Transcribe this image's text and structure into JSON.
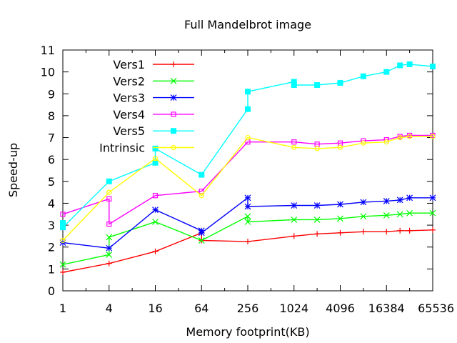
{
  "chart_data": {
    "type": "line",
    "title": "Full Mandelbrot image",
    "xlabel": "Memory footprint(KB)",
    "ylabel": "Speed-up",
    "x_scale": "log2",
    "xlim": [
      1,
      65536
    ],
    "ylim": [
      0,
      11
    ],
    "x_ticks": [
      1,
      4,
      16,
      64,
      256,
      1024,
      4096,
      16384,
      65536
    ],
    "x_tick_labels": [
      "1",
      "4",
      "16",
      "64",
      "256",
      "1024",
      "4096",
      "16384",
      "65536"
    ],
    "y_ticks": [
      0,
      1,
      2,
      3,
      4,
      5,
      6,
      7,
      8,
      9,
      10,
      11
    ],
    "y_tick_labels": [
      "0",
      "1",
      "2",
      "3",
      "4",
      "5",
      "6",
      "7",
      "8",
      "9",
      "10",
      "11"
    ],
    "grid": false,
    "legend_position": "top-left",
    "series": [
      {
        "name": "Vers1",
        "color": "#ff0000",
        "marker": "plus",
        "points": [
          [
            1,
            0.85
          ],
          [
            4,
            1.25
          ],
          [
            16,
            1.8
          ],
          [
            64,
            2.65
          ],
          [
            64,
            2.3
          ],
          [
            256,
            2.25
          ],
          [
            1024,
            2.5
          ],
          [
            2048,
            2.6
          ],
          [
            4096,
            2.65
          ],
          [
            8192,
            2.7
          ],
          [
            16384,
            2.7
          ],
          [
            24576,
            2.75
          ],
          [
            32768,
            2.75
          ],
          [
            65536,
            2.78
          ]
        ]
      },
      {
        "name": "Vers2",
        "color": "#00ff00",
        "marker": "cross",
        "points": [
          [
            1,
            1.2
          ],
          [
            4,
            1.65
          ],
          [
            4,
            2.45
          ],
          [
            16,
            3.15
          ],
          [
            64,
            2.3
          ],
          [
            256,
            3.4
          ],
          [
            256,
            3.15
          ],
          [
            1024,
            3.25
          ],
          [
            2048,
            3.25
          ],
          [
            4096,
            3.3
          ],
          [
            8192,
            3.4
          ],
          [
            16384,
            3.45
          ],
          [
            24576,
            3.5
          ],
          [
            32768,
            3.55
          ],
          [
            65536,
            3.55
          ]
        ]
      },
      {
        "name": "Vers3",
        "color": "#0000ff",
        "marker": "star",
        "points": [
          [
            1,
            2.2
          ],
          [
            4,
            1.95
          ],
          [
            16,
            3.7
          ],
          [
            64,
            2.75
          ],
          [
            64,
            2.65
          ],
          [
            256,
            4.25
          ],
          [
            256,
            3.85
          ],
          [
            1024,
            3.9
          ],
          [
            2048,
            3.9
          ],
          [
            4096,
            3.95
          ],
          [
            8192,
            4.05
          ],
          [
            16384,
            4.1
          ],
          [
            24576,
            4.15
          ],
          [
            32768,
            4.25
          ],
          [
            65536,
            4.25
          ]
        ]
      },
      {
        "name": "Vers4",
        "color": "#ff00ff",
        "marker": "square",
        "points": [
          [
            1,
            3.5
          ],
          [
            4,
            4.2
          ],
          [
            4,
            3.05
          ],
          [
            16,
            4.35
          ],
          [
            64,
            4.55
          ],
          [
            256,
            6.8
          ],
          [
            1024,
            6.8
          ],
          [
            2048,
            6.7
          ],
          [
            4096,
            6.75
          ],
          [
            8192,
            6.85
          ],
          [
            16384,
            6.9
          ],
          [
            24576,
            7.05
          ],
          [
            32768,
            7.1
          ],
          [
            65536,
            7.1
          ]
        ]
      },
      {
        "name": "Vers5",
        "color": "#00ffff",
        "marker": "filled-square",
        "points": [
          [
            1,
            3.1
          ],
          [
            1,
            2.9
          ],
          [
            4,
            5.0
          ],
          [
            16,
            5.85
          ],
          [
            16,
            6.5
          ],
          [
            64,
            5.3
          ],
          [
            256,
            8.3
          ],
          [
            256,
            9.1
          ],
          [
            1024,
            9.55
          ],
          [
            1024,
            9.4
          ],
          [
            2048,
            9.4
          ],
          [
            4096,
            9.5
          ],
          [
            8192,
            9.8
          ],
          [
            16384,
            10.0
          ],
          [
            24576,
            10.3
          ],
          [
            32768,
            10.35
          ],
          [
            65536,
            10.25
          ]
        ]
      },
      {
        "name": "Intrinsic",
        "color": "#ffff00",
        "marker": "circle",
        "points": [
          [
            1,
            2.3
          ],
          [
            4,
            4.5
          ],
          [
            16,
            6.05
          ],
          [
            64,
            4.35
          ],
          [
            256,
            7.0
          ],
          [
            1024,
            6.55
          ],
          [
            2048,
            6.5
          ],
          [
            4096,
            6.55
          ],
          [
            8192,
            6.75
          ],
          [
            16384,
            6.8
          ],
          [
            24576,
            7.0
          ],
          [
            32768,
            7.05
          ],
          [
            65536,
            7.05
          ]
        ]
      }
    ]
  }
}
